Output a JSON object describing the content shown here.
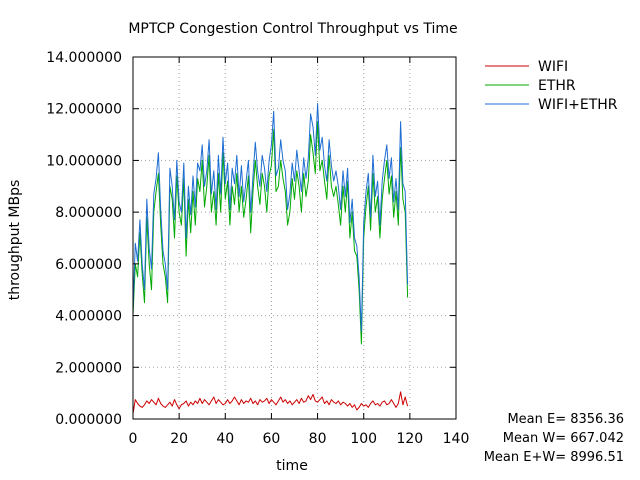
{
  "chart_data": {
    "type": "line",
    "title": "MPTCP Congestion Control Throughput vs Time",
    "xlabel": "time",
    "ylabel": "throughput MBps",
    "xlim": [
      0,
      140
    ],
    "ylim": [
      0,
      14
    ],
    "x_ticks": [
      0,
      20,
      40,
      60,
      80,
      100,
      120,
      140
    ],
    "y_ticks": [
      0,
      2,
      4,
      6,
      8,
      10,
      12,
      14
    ],
    "y_tick_labels": [
      "0.000000",
      "2.000000",
      "4.000000",
      "6.000000",
      "8.000000",
      "10.000000",
      "12.000000",
      "14.000000"
    ],
    "grid": true,
    "legend_position": "top-right outside",
    "series": [
      {
        "name": "WIFI",
        "color": "#cc0000",
        "x": [
          0,
          1,
          2,
          3,
          4,
          5,
          6,
          7,
          8,
          9,
          10,
          11,
          12,
          13,
          14,
          15,
          16,
          17,
          18,
          19,
          20,
          21,
          22,
          23,
          24,
          25,
          26,
          27,
          28,
          29,
          30,
          31,
          32,
          33,
          34,
          35,
          36,
          37,
          38,
          39,
          40,
          41,
          42,
          43,
          44,
          45,
          46,
          47,
          48,
          49,
          50,
          51,
          52,
          53,
          54,
          55,
          56,
          57,
          58,
          59,
          60,
          61,
          62,
          63,
          64,
          65,
          66,
          67,
          68,
          69,
          70,
          71,
          72,
          73,
          74,
          75,
          76,
          77,
          78,
          79,
          80,
          81,
          82,
          83,
          84,
          85,
          86,
          87,
          88,
          89,
          90,
          91,
          92,
          93,
          94,
          95,
          96,
          97,
          98,
          99,
          100,
          101,
          102,
          103,
          104,
          105,
          106,
          107,
          108,
          109,
          110,
          111,
          112,
          113,
          114,
          115,
          116,
          117,
          118,
          119
        ],
        "values": [
          0.2,
          0.75,
          0.6,
          0.5,
          0.45,
          0.55,
          0.7,
          0.6,
          0.75,
          0.65,
          0.55,
          0.8,
          0.6,
          0.5,
          0.45,
          0.55,
          0.65,
          0.5,
          0.75,
          0.55,
          0.4,
          0.55,
          0.6,
          0.7,
          0.5,
          0.65,
          0.55,
          0.7,
          0.6,
          0.8,
          0.6,
          0.75,
          0.65,
          0.55,
          0.7,
          0.85,
          0.6,
          0.75,
          0.65,
          0.55,
          0.6,
          0.75,
          0.6,
          0.7,
          0.85,
          0.7,
          0.55,
          0.75,
          0.6,
          0.7,
          0.65,
          0.8,
          0.6,
          0.7,
          0.55,
          0.75,
          0.65,
          0.7,
          0.8,
          0.6,
          0.75,
          0.65,
          0.55,
          0.7,
          0.85,
          0.65,
          0.75,
          0.6,
          0.7,
          0.55,
          0.65,
          0.75,
          0.6,
          0.8,
          0.65,
          0.7,
          0.9,
          0.75,
          0.95,
          0.7,
          0.65,
          0.75,
          0.85,
          0.6,
          0.7,
          0.55,
          0.75,
          0.65,
          0.6,
          0.7,
          0.55,
          0.65,
          0.6,
          0.5,
          0.6,
          0.45,
          0.55,
          0.35,
          0.45,
          0.6,
          0.5,
          0.55,
          0.45,
          0.6,
          0.7,
          0.55,
          0.6,
          0.5,
          0.65,
          0.7,
          0.55,
          0.6,
          0.75,
          0.6,
          0.45,
          0.6,
          1.05,
          0.55,
          0.85,
          0.5
        ]
      },
      {
        "name": "ETHR",
        "color": "#00aa00",
        "x": [
          0,
          1,
          2,
          3,
          4,
          5,
          6,
          7,
          8,
          9,
          10,
          11,
          12,
          13,
          14,
          15,
          16,
          17,
          18,
          19,
          20,
          21,
          22,
          23,
          24,
          25,
          26,
          27,
          28,
          29,
          30,
          31,
          32,
          33,
          34,
          35,
          36,
          37,
          38,
          39,
          40,
          41,
          42,
          43,
          44,
          45,
          46,
          47,
          48,
          49,
          50,
          51,
          52,
          53,
          54,
          55,
          56,
          57,
          58,
          59,
          60,
          61,
          62,
          63,
          64,
          65,
          66,
          67,
          68,
          69,
          70,
          71,
          72,
          73,
          74,
          75,
          76,
          77,
          78,
          79,
          80,
          81,
          82,
          83,
          84,
          85,
          86,
          87,
          88,
          89,
          90,
          91,
          92,
          93,
          94,
          95,
          96,
          97,
          98,
          99,
          100,
          101,
          102,
          103,
          104,
          105,
          106,
          107,
          108,
          109,
          110,
          111,
          112,
          113,
          114,
          115,
          116,
          117,
          118,
          119
        ],
        "values": [
          4.0,
          6.0,
          5.5,
          7.2,
          5.6,
          4.5,
          7.8,
          6.0,
          5.0,
          8.0,
          8.8,
          9.5,
          7.5,
          6.0,
          5.5,
          4.5,
          9.0,
          8.5,
          7.0,
          9.4,
          8.0,
          7.5,
          9.3,
          6.3,
          8.5,
          7.2,
          8.8,
          7.5,
          9.3,
          8.8,
          10.0,
          8.2,
          9.0,
          10.2,
          8.0,
          8.8,
          7.5,
          9.5,
          8.0,
          10.3,
          8.5,
          9.2,
          7.5,
          9.0,
          8.3,
          9.5,
          8.0,
          9.0,
          7.8,
          8.5,
          9.4,
          7.2,
          8.8,
          10.0,
          9.0,
          8.3,
          9.5,
          9.0,
          8.0,
          9.4,
          9.8,
          11.2,
          8.8,
          9.0,
          10.0,
          9.3,
          8.8,
          7.5,
          8.0,
          9.3,
          8.5,
          9.6,
          9.0,
          8.0,
          9.5,
          8.6,
          9.2,
          11.0,
          10.3,
          9.5,
          11.5,
          9.6,
          10.0,
          9.2,
          8.5,
          10.2,
          9.0,
          8.6,
          9.0,
          8.3,
          7.5,
          9.0,
          8.0,
          9.2,
          7.0,
          8.0,
          6.5,
          6.3,
          5.0,
          2.9,
          7.0,
          8.2,
          9.0,
          7.3,
          9.5,
          8.0,
          8.6,
          7.0,
          8.5,
          9.3,
          10.0,
          8.7,
          9.4,
          7.8,
          8.8,
          7.5,
          10.5,
          8.5,
          8.0,
          4.7
        ]
      },
      {
        "name": "WIFI+ETHR",
        "color": "#1e6ed2",
        "x": [
          0,
          1,
          2,
          3,
          4,
          5,
          6,
          7,
          8,
          9,
          10,
          11,
          12,
          13,
          14,
          15,
          16,
          17,
          18,
          19,
          20,
          21,
          22,
          23,
          24,
          25,
          26,
          27,
          28,
          29,
          30,
          31,
          32,
          33,
          34,
          35,
          36,
          37,
          38,
          39,
          40,
          41,
          42,
          43,
          44,
          45,
          46,
          47,
          48,
          49,
          50,
          51,
          52,
          53,
          54,
          55,
          56,
          57,
          58,
          59,
          60,
          61,
          62,
          63,
          64,
          65,
          66,
          67,
          68,
          69,
          70,
          71,
          72,
          73,
          74,
          75,
          76,
          77,
          78,
          79,
          80,
          81,
          82,
          83,
          84,
          85,
          86,
          87,
          88,
          89,
          90,
          91,
          92,
          93,
          94,
          95,
          96,
          97,
          98,
          99,
          100,
          101,
          102,
          103,
          104,
          105,
          106,
          107,
          108,
          109,
          110,
          111,
          112,
          113,
          114,
          115,
          116,
          117,
          118,
          119
        ],
        "values": [
          4.2,
          6.8,
          6.1,
          7.7,
          6.0,
          5.0,
          8.5,
          6.6,
          5.8,
          8.7,
          9.3,
          10.3,
          8.1,
          6.5,
          6.0,
          5.0,
          9.7,
          9.0,
          7.7,
          10.0,
          8.4,
          8.0,
          9.9,
          7.0,
          9.0,
          7.9,
          9.4,
          8.2,
          9.9,
          9.6,
          10.6,
          9.0,
          9.6,
          10.8,
          8.7,
          9.6,
          8.1,
          10.2,
          8.7,
          10.9,
          9.1,
          9.9,
          8.1,
          9.7,
          9.1,
          10.2,
          8.6,
          9.8,
          8.4,
          9.2,
          10.0,
          8.0,
          9.4,
          10.7,
          9.6,
          9.0,
          10.2,
          9.7,
          8.8,
          10.0,
          10.6,
          11.9,
          9.4,
          9.7,
          10.8,
          10.0,
          9.6,
          8.1,
          8.7,
          9.9,
          9.2,
          10.4,
          9.6,
          8.8,
          10.1,
          9.3,
          10.1,
          11.8,
          11.3,
          10.2,
          12.2,
          10.4,
          10.9,
          9.8,
          9.2,
          10.8,
          9.8,
          9.2,
          9.6,
          9.0,
          8.1,
          9.6,
          8.6,
          9.7,
          7.6,
          8.5,
          7.0,
          6.7,
          5.5,
          3.4,
          7.6,
          8.8,
          9.5,
          7.8,
          10.2,
          8.6,
          9.2,
          7.5,
          9.2,
          10.0,
          10.6,
          9.3,
          10.1,
          8.4,
          9.3,
          8.1,
          11.5,
          9.1,
          8.8,
          5.2
        ]
      }
    ]
  },
  "stats": {
    "mean_e": "Mean E= 8356.36",
    "mean_w": "Mean W= 667.042",
    "mean_ew": "Mean E+W= 8996.51"
  }
}
